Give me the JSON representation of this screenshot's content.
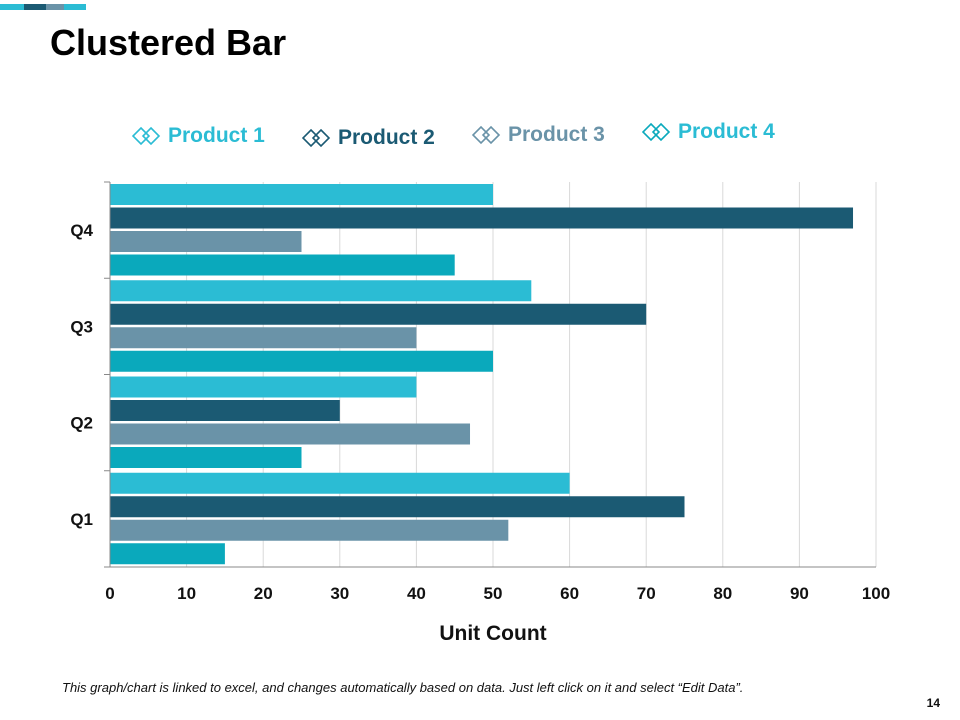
{
  "slide": {
    "title": "Clustered Bar",
    "footnote": "This graph/chart is linked to excel, and changes automatically based on data. Just left click on it and select “Edit Data”.",
    "page_number": "14",
    "accent_colors": [
      "#2bbcd4",
      "#1b5a73",
      "#6a93a8",
      "#2bbcd4"
    ]
  },
  "chart_data": {
    "type": "bar",
    "orientation": "horizontal",
    "title": "",
    "xlabel": "Unit Count",
    "ylabel": "",
    "xlim": [
      0,
      100
    ],
    "x_ticks": [
      "0",
      "10",
      "20",
      "30",
      "40",
      "50",
      "60",
      "70",
      "80",
      "90",
      "100"
    ],
    "categories": [
      "Q1",
      "Q2",
      "Q3",
      "Q4"
    ],
    "series": [
      {
        "name": "Product 1",
        "color": "#2bbcd4",
        "values": [
          60,
          40,
          55,
          50
        ]
      },
      {
        "name": "Product 2",
        "color": "#1b5a73",
        "values": [
          75,
          30,
          70,
          97
        ]
      },
      {
        "name": "Product 3",
        "color": "#6a93a8",
        "values": [
          52,
          47,
          40,
          25
        ]
      },
      {
        "name": "Product 4",
        "color": "#0aa9bc",
        "values": [
          15,
          25,
          50,
          45
        ]
      }
    ],
    "legend_position": "top",
    "grid": true
  }
}
